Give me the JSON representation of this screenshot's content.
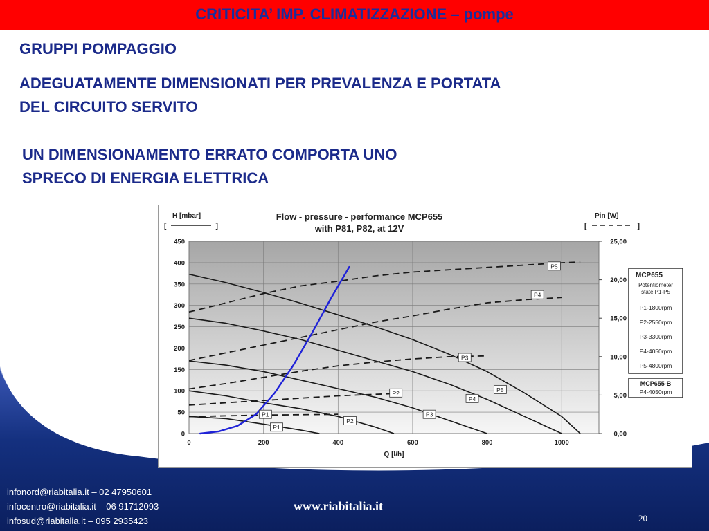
{
  "slide": {
    "title": "CRITICITA’ IMP. CLIMATIZZAZIONE – pompe",
    "heading1": "GRUPPI POMPAGGIO",
    "heading2_line1": "ADEGUATAMENTE DIMENSIONATI PER PREVALENZA E PORTATA",
    "heading2_line2": "DEL CIRCUITO SERVITO",
    "heading3_line1": "UN DIMENSIONAMENTO ERRATO COMPORTA UNO",
    "heading3_line2": "SPRECO DI ENERGIA ELETTRICA",
    "colors": {
      "title_bar": "#ff0000",
      "title_text": "#1a2e9c",
      "heading_text": "#1b2a8a",
      "footer_bg": "#102a78",
      "system_curve": "#1f22d8"
    }
  },
  "footer": {
    "contact1": "infonord@riabitalia.it – 02 47950601",
    "contact2": "infocentro@riabitalia.it – 06 91712093",
    "contact3": "infosud@riabitalia.it – 095 2935423",
    "website": "www.riabitalia.it",
    "page_number": "20"
  },
  "chart_data": {
    "type": "line",
    "title_line1": "Flow - pressure - performance MCP655",
    "title_line2": "with P81, P82, at 12V",
    "xlabel": "Q [l/h]",
    "ylabel_left": "H [mbar]",
    "ylabel_left_bracket": "[ ]",
    "ylabel_right": "Pin [W]",
    "ylabel_right_bracket": "[ ]",
    "xlim": [
      0,
      1100
    ],
    "ylim_left": [
      0,
      450
    ],
    "ylim_right": [
      0,
      25
    ],
    "x_ticks": [
      "0",
      "200",
      "400",
      "600",
      "800",
      "1000"
    ],
    "x_tick_values": [
      0,
      200,
      400,
      600,
      800,
      1000
    ],
    "y_ticks_left": [
      "0",
      "50",
      "100",
      "150",
      "200",
      "250",
      "300",
      "350",
      "400",
      "450"
    ],
    "y_tick_values_left": [
      0,
      50,
      100,
      150,
      200,
      250,
      300,
      350,
      400,
      450
    ],
    "y_ticks_right": [
      "0,00",
      "5,00",
      "10,00",
      "15,00",
      "20,00",
      "25,00"
    ],
    "y_tick_values_right": [
      0,
      5,
      10,
      15,
      20,
      25
    ],
    "grid": true,
    "pressure_series": [
      {
        "name": "P1",
        "x": [
          0,
          100,
          200,
          300,
          350
        ],
        "y": [
          40,
          35,
          22,
          8,
          0
        ]
      },
      {
        "name": "P2",
        "x": [
          0,
          100,
          200,
          300,
          400,
          500,
          550
        ],
        "y": [
          100,
          88,
          72,
          58,
          40,
          15,
          0
        ]
      },
      {
        "name": "P3",
        "x": [
          0,
          100,
          200,
          300,
          400,
          500,
          600,
          700,
          800
        ],
        "y": [
          170,
          160,
          145,
          125,
          105,
          85,
          60,
          30,
          0
        ]
      },
      {
        "name": "P4",
        "x": [
          0,
          100,
          200,
          300,
          400,
          500,
          600,
          700,
          800,
          900,
          1000
        ],
        "y": [
          270,
          258,
          240,
          220,
          195,
          170,
          145,
          115,
          80,
          40,
          0
        ]
      },
      {
        "name": "P5",
        "x": [
          0,
          100,
          200,
          300,
          400,
          500,
          600,
          700,
          800,
          900,
          1000,
          1050
        ],
        "y": [
          373,
          353,
          330,
          305,
          278,
          250,
          220,
          185,
          145,
          95,
          40,
          0
        ]
      }
    ],
    "power_series": [
      {
        "name": "P1",
        "x": [
          0,
          100,
          200,
          300,
          400
        ],
        "y": [
          2.2,
          2.3,
          2.4,
          2.45,
          2.5
        ]
      },
      {
        "name": "P2",
        "x": [
          0,
          100,
          200,
          300,
          400,
          500,
          550
        ],
        "y": [
          3.7,
          4.0,
          4.3,
          4.6,
          4.9,
          5.1,
          5.2
        ]
      },
      {
        "name": "P3",
        "x": [
          0,
          100,
          200,
          300,
          400,
          500,
          600,
          700,
          800
        ],
        "y": [
          5.8,
          6.5,
          7.3,
          8.1,
          8.8,
          9.3,
          9.7,
          10.0,
          10.1
        ]
      },
      {
        "name": "P4",
        "x": [
          0,
          100,
          200,
          300,
          400,
          500,
          600,
          700,
          800,
          900,
          1000
        ],
        "y": [
          9.5,
          10.5,
          11.5,
          12.5,
          13.5,
          14.5,
          15.3,
          16.2,
          17.0,
          17.4,
          17.7
        ]
      },
      {
        "name": "P5",
        "x": [
          0,
          100,
          200,
          300,
          400,
          500,
          600,
          700,
          800,
          900,
          1000,
          1050
        ],
        "y": [
          15.8,
          17.0,
          18.2,
          19.2,
          19.8,
          20.5,
          21.0,
          21.3,
          21.6,
          21.9,
          22.2,
          22.3
        ]
      }
    ],
    "system_curve": {
      "x": [
        30,
        80,
        130,
        180,
        230,
        280,
        330,
        380,
        430
      ],
      "y": [
        0,
        5,
        18,
        45,
        95,
        160,
        235,
        315,
        390
      ]
    },
    "curve_labels": [
      {
        "text": "P1",
        "x": 235,
        "y": 15
      },
      {
        "text": "P2",
        "x": 432,
        "y": 30
      },
      {
        "text": "P3",
        "x": 645,
        "y": 45
      },
      {
        "text": "P4",
        "x": 760,
        "y": 82
      },
      {
        "text": "P5",
        "x": 835,
        "y": 103
      },
      {
        "text": "P1",
        "x": 205,
        "y": 45
      },
      {
        "text": "P2",
        "x": 555,
        "y": 95
      },
      {
        "text": "P3",
        "x": 740,
        "y": 178
      },
      {
        "text": "P4",
        "x": 935,
        "y": 325
      },
      {
        "text": "P5",
        "x": 980,
        "y": 392
      }
    ],
    "legend1": {
      "title": "MCP655",
      "subtitle_line1": "Potentiometer",
      "subtitle_line2": "state P1-P5",
      "items": [
        "P1-1800rpm",
        "P2-2550rpm",
        "P3-3300rpm",
        "P4-4050rpm",
        "P5-4800rpm"
      ]
    },
    "legend2": {
      "title": "MCP655-B",
      "items": [
        "P4-4050rpm"
      ]
    }
  }
}
